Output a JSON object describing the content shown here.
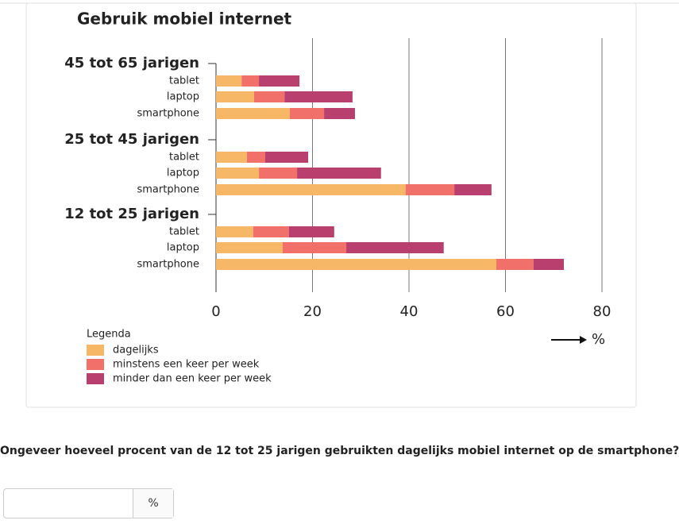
{
  "chart_data": {
    "type": "stacked-barh",
    "title": "Gebruik mobiel internet",
    "groups": [
      "45 tot 65 jarigen",
      "25 tot 45 jarigen",
      "12 tot 25 jarigen"
    ],
    "categories": [
      "tablet",
      "laptop",
      "smartphone",
      "tablet",
      "laptop",
      "smartphone",
      "tablet",
      "laptop",
      "smartphone"
    ],
    "series": [
      {
        "name": "dagelijks",
        "color": "#f6b866",
        "values": [
          5.3,
          7.9,
          15.3,
          6.4,
          8.9,
          39.3,
          7.7,
          13.8,
          58.1
        ]
      },
      {
        "name": "minstens een keer per week",
        "color": "#f2706a",
        "values": [
          3.6,
          6.3,
          7.1,
          3.8,
          7.9,
          10.1,
          7.4,
          13.2,
          7.7
        ]
      },
      {
        "name": "minder dan een keer per week",
        "color": "#b83f6e",
        "values": [
          8.4,
          14.1,
          6.4,
          8.9,
          17.4,
          7.7,
          9.4,
          20.2,
          6.3
        ]
      }
    ],
    "xlim": [
      0,
      80
    ],
    "xticks": [
      0,
      20,
      40,
      60,
      80
    ],
    "grid": true,
    "x_label": "%",
    "legend_title": "Legenda"
  },
  "question": "Ongeveer hoeveel procent van de 12 tot 25 jarigen gebruikten dagelijks mobiel internet op de smartphone?",
  "answer_unit": "%"
}
